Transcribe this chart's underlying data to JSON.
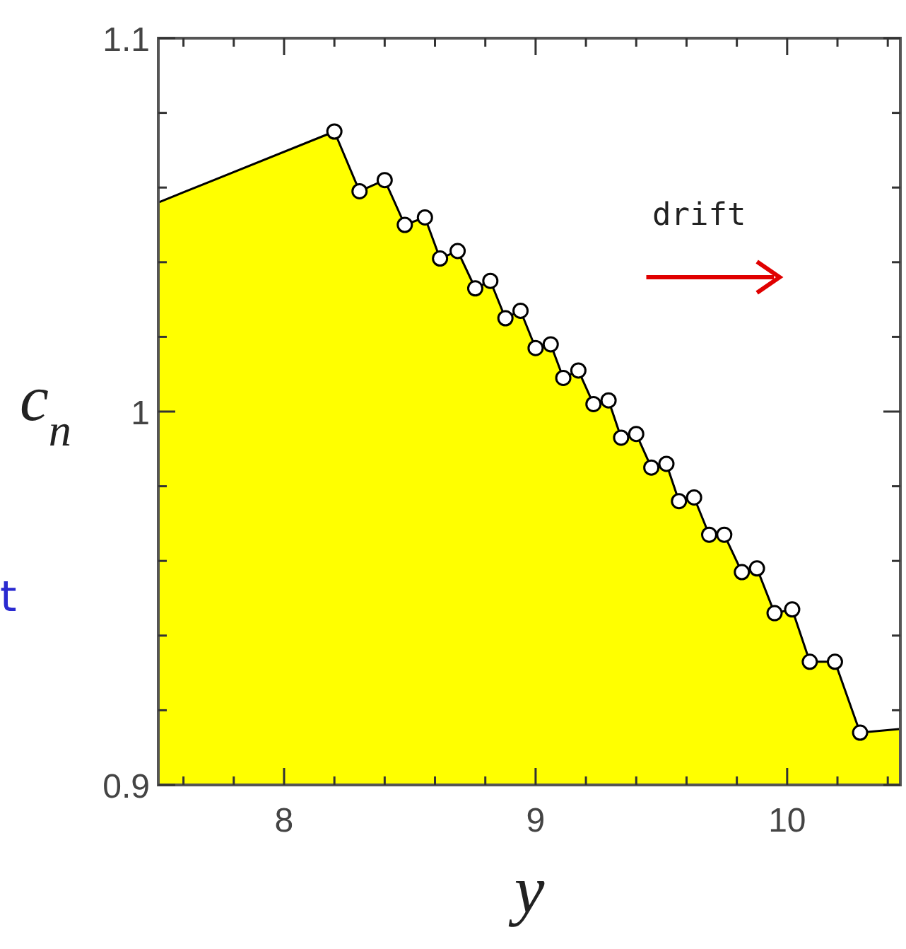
{
  "chart_data": {
    "type": "area",
    "xlabel": "y",
    "ylabel": "c$_{n}$",
    "xlim": [
      7.5,
      10.45
    ],
    "ylim": [
      0.9,
      1.1
    ],
    "xticks": [
      {
        "value": 7.6,
        "label": null
      },
      {
        "value": 7.8,
        "label": null
      },
      8,
      {
        "value": 8.2,
        "label": null
      },
      {
        "value": 8.4,
        "label": null
      },
      {
        "value": 8.6,
        "label": null
      },
      {
        "value": 8.8,
        "label": null
      },
      9,
      {
        "value": 9.2,
        "label": null
      },
      {
        "value": 9.4,
        "label": null
      },
      {
        "value": 9.6,
        "label": null
      },
      {
        "value": 9.8,
        "label": null
      },
      10,
      {
        "value": 10.2,
        "label": null
      },
      {
        "value": 10.4,
        "label": null
      }
    ],
    "yticks": [
      0.9,
      {
        "value": 0.92,
        "label": null
      },
      {
        "value": 0.94,
        "label": null
      },
      {
        "value": 0.96,
        "label": null
      },
      {
        "value": 0.98,
        "label": null
      },
      1,
      {
        "value": 1.02,
        "label": null
      },
      {
        "value": 1.04,
        "label": null
      },
      {
        "value": 1.06,
        "label": null
      },
      {
        "value": 1.08,
        "label": null
      },
      1.1
    ],
    "grid": false,
    "annotations": [
      "drift",
      "t"
    ],
    "series": [
      {
        "color": "#ffff00",
        "marker": "none",
        "x": [
          7.5,
          8.2,
          8.3,
          8.4,
          8.48,
          8.56,
          8.62,
          8.69,
          8.76,
          8.82,
          8.88,
          8.94,
          9.0,
          9.06,
          9.11,
          9.17,
          9.23,
          9.29,
          9.34,
          9.4,
          9.46,
          9.52,
          9.57,
          9.63,
          9.69,
          9.75,
          9.82,
          9.88,
          9.95,
          10.02,
          10.09,
          10.19,
          10.29,
          10.45
        ],
        "values": [
          1.056,
          1.075,
          1.059,
          1.062,
          1.05,
          1.052,
          1.041,
          1.043,
          1.033,
          1.035,
          1.025,
          1.027,
          1.017,
          1.018,
          1.009,
          1.011,
          1.002,
          1.003,
          0.993,
          0.994,
          0.985,
          0.986,
          0.976,
          0.977,
          0.967,
          0.967,
          0.957,
          0.958,
          0.946,
          0.947,
          0.933,
          0.933,
          0.914,
          0.915
        ]
      },
      {
        "type": "scatter",
        "color": "#ffffff",
        "marker": "circle",
        "x": [
          8.2,
          8.3,
          8.4,
          8.48,
          8.56,
          8.62,
          8.69,
          8.76,
          8.82,
          8.88,
          8.94,
          9.0,
          9.06,
          9.11,
          9.17,
          9.23,
          9.29,
          9.34,
          9.4,
          9.46,
          9.52,
          9.57,
          9.63,
          9.69,
          9.75,
          9.82,
          9.88,
          9.95,
          10.02,
          10.09,
          10.19,
          10.29
        ],
        "values": [
          1.075,
          1.059,
          1.062,
          1.05,
          1.052,
          1.041,
          1.043,
          1.033,
          1.035,
          1.025,
          1.027,
          1.017,
          1.018,
          1.009,
          1.011,
          1.002,
          1.003,
          0.993,
          0.994,
          0.985,
          0.986,
          0.976,
          0.977,
          0.967,
          0.967,
          0.957,
          0.958,
          0.946,
          0.947,
          0.933,
          0.933,
          0.914
        ]
      }
    ]
  }
}
